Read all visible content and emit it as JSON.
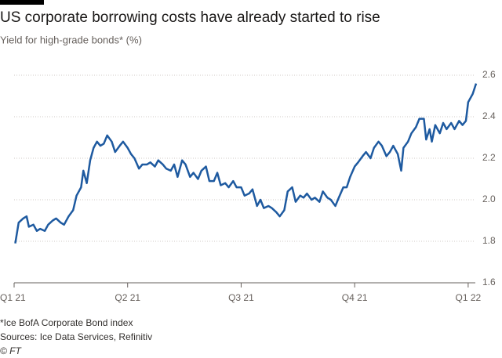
{
  "chart_data": {
    "type": "line",
    "title": "US corporate borrowing costs have already started to rise",
    "subtitle": "Yield for high-grade bonds* (%)",
    "notes": [
      "*Ice BofA Corporate Bond index",
      "Sources: Ice Data Services, Refinitiv",
      "© FT"
    ],
    "xlim": [
      0,
      4.07
    ],
    "xticks": [
      {
        "value": 0,
        "label": "Q1 21"
      },
      {
        "value": 1,
        "label": "Q2 21"
      },
      {
        "value": 2,
        "label": "Q3 21"
      },
      {
        "value": 3,
        "label": "Q4 21"
      },
      {
        "value": 4,
        "label": "Q1 22"
      }
    ],
    "ylim": [
      1.6,
      2.6
    ],
    "yticks": [
      1.6,
      1.8,
      {
        "value": 2,
        "label": "2.0"
      },
      2.2,
      2.4,
      2.6
    ],
    "grid": true,
    "series": [
      {
        "color": "#1e5aa0",
        "x": [
          0.01,
          0.04,
          0.08,
          0.11,
          0.13,
          0.17,
          0.2,
          0.23,
          0.27,
          0.3,
          0.34,
          0.37,
          0.41,
          0.44,
          0.48,
          0.52,
          0.55,
          0.59,
          0.61,
          0.64,
          0.67,
          0.7,
          0.73,
          0.76,
          0.79,
          0.82,
          0.86,
          0.89,
          0.93,
          0.96,
          1.0,
          1.03,
          1.06,
          1.1,
          1.13,
          1.17,
          1.2,
          1.24,
          1.27,
          1.31,
          1.34,
          1.38,
          1.41,
          1.44,
          1.48,
          1.51,
          1.55,
          1.58,
          1.62,
          1.65,
          1.69,
          1.72,
          1.76,
          1.79,
          1.82,
          1.86,
          1.89,
          1.93,
          1.96,
          2.0,
          2.03,
          2.07,
          2.1,
          2.14,
          2.17,
          2.2,
          2.24,
          2.27,
          2.31,
          2.34,
          2.38,
          2.41,
          2.45,
          2.48,
          2.52,
          2.55,
          2.58,
          2.62,
          2.65,
          2.69,
          2.72,
          2.76,
          2.79,
          2.83,
          2.86,
          2.9,
          2.93,
          2.96,
          3.0,
          3.03,
          3.07,
          3.1,
          3.14,
          3.17,
          3.21,
          3.24,
          3.28,
          3.31,
          3.34,
          3.38,
          3.41,
          3.43,
          3.47,
          3.5,
          3.54,
          3.57,
          3.61,
          3.63,
          3.66,
          3.68,
          3.71,
          3.75,
          3.78,
          3.81,
          3.85,
          3.88,
          3.92,
          3.95,
          3.98,
          4.0,
          4.04,
          4.07
        ],
        "values": [
          1.79,
          1.89,
          1.91,
          1.92,
          1.87,
          1.88,
          1.85,
          1.86,
          1.85,
          1.88,
          1.9,
          1.91,
          1.89,
          1.88,
          1.92,
          1.95,
          2.02,
          2.06,
          2.14,
          2.08,
          2.19,
          2.25,
          2.28,
          2.26,
          2.27,
          2.31,
          2.28,
          2.23,
          2.26,
          2.28,
          2.25,
          2.22,
          2.2,
          2.15,
          2.17,
          2.17,
          2.18,
          2.16,
          2.19,
          2.17,
          2.15,
          2.14,
          2.17,
          2.11,
          2.19,
          2.17,
          2.11,
          2.13,
          2.1,
          2.14,
          2.16,
          2.09,
          2.09,
          2.13,
          2.07,
          2.08,
          2.06,
          2.09,
          2.06,
          2.06,
          2.02,
          2.03,
          2.05,
          1.97,
          2.0,
          1.96,
          1.97,
          1.96,
          1.94,
          1.92,
          1.95,
          2.04,
          2.06,
          1.99,
          2.02,
          2.01,
          2.03,
          2.0,
          2.01,
          1.99,
          2.04,
          2.01,
          2.0,
          1.97,
          2.01,
          2.06,
          2.06,
          2.11,
          2.16,
          2.18,
          2.21,
          2.23,
          2.2,
          2.25,
          2.28,
          2.26,
          2.21,
          2.23,
          2.26,
          2.22,
          2.14,
          2.25,
          2.28,
          2.32,
          2.35,
          2.39,
          2.39,
          2.29,
          2.34,
          2.28,
          2.36,
          2.32,
          2.37,
          2.34,
          2.37,
          2.34,
          2.38,
          2.36,
          2.38,
          2.47,
          2.51,
          2.56
        ]
      }
    ]
  }
}
